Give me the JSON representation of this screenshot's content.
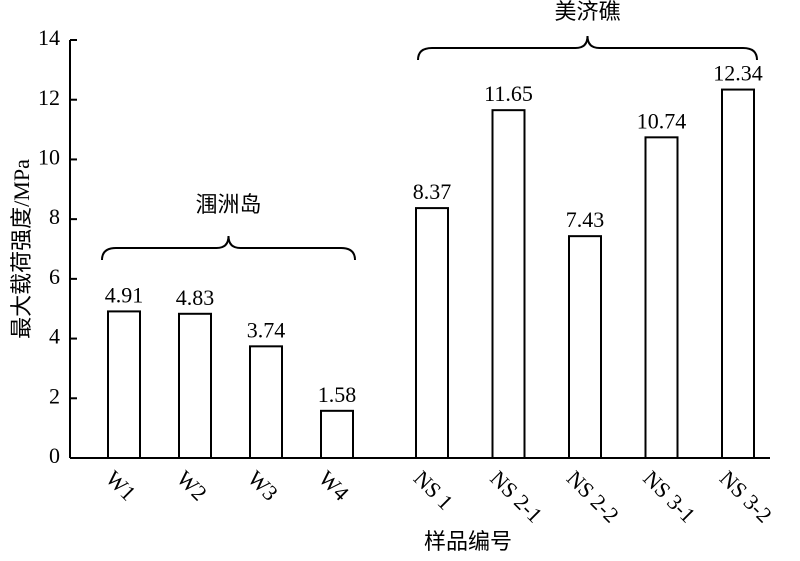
{
  "chart_data": {
    "type": "bar",
    "categories": [
      "W1",
      "W2",
      "W3",
      "W4",
      "NS 1",
      "NS 2-1",
      "NS 2-2",
      "NS 3-1",
      "NS 3-2"
    ],
    "values": [
      4.91,
      4.83,
      3.74,
      1.58,
      8.37,
      11.65,
      7.43,
      10.74,
      12.34
    ],
    "color": "#ffffff",
    "ylim": [
      0,
      14
    ],
    "yticks": [
      0,
      2,
      4,
      6,
      8,
      10,
      12,
      14
    ],
    "xlabel": "样品编号",
    "ylabel": "最大载荷强度/MPa",
    "annotations": [
      "涠洲岛",
      "美济礁"
    ],
    "grid": false
  }
}
